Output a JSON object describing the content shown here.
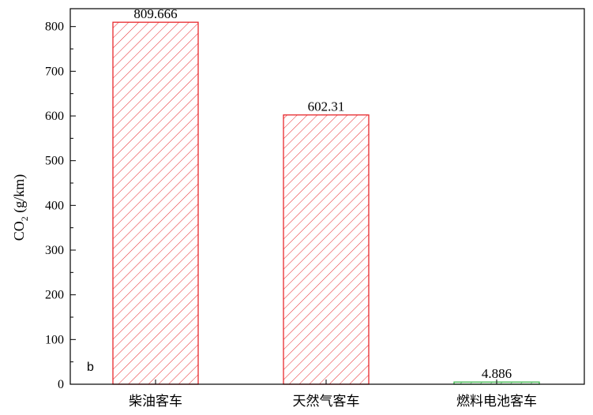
{
  "chart_data": {
    "type": "bar",
    "categories": [
      "柴油客车",
      "天然气客车",
      "燃料电池客车"
    ],
    "values": [
      809.666,
      602.31,
      4.886
    ],
    "value_labels": [
      "809.666",
      "602.31",
      "4.886"
    ],
    "ylabel_main": "CO",
    "ylabel_sub": "2",
    "ylabel_unit": " (g/km)",
    "ylim": [
      0,
      840
    ],
    "yticks": [
      0,
      100,
      200,
      300,
      400,
      500,
      600,
      700,
      800
    ],
    "ytick_labels": [
      "0",
      "100",
      "200",
      "300",
      "400",
      "500",
      "600",
      "700",
      "800"
    ],
    "panel_label": "b",
    "colors": [
      "#e8282c",
      "#e8282c",
      "#39b54a"
    ],
    "pattern": "diagonal-hatch",
    "grid": false,
    "legend": "none"
  }
}
